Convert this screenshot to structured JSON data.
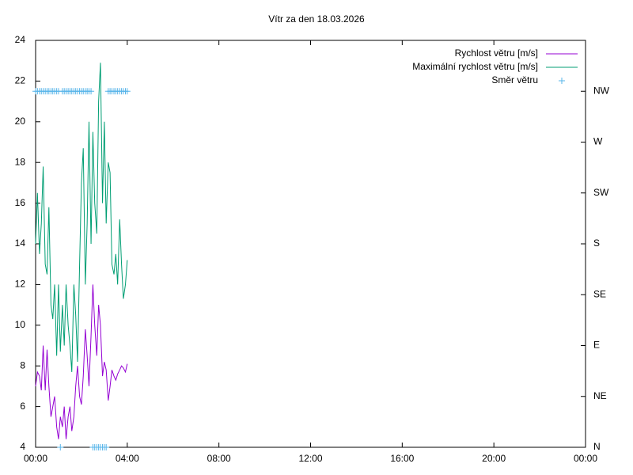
{
  "chart_data": {
    "type": "line",
    "title": "Vítr za den 18.03.2026",
    "x": [
      0,
      0.08,
      0.17,
      0.25,
      0.33,
      0.42,
      0.5,
      0.58,
      0.67,
      0.75,
      0.83,
      0.92,
      1,
      1.08,
      1.17,
      1.25,
      1.33,
      1.42,
      1.5,
      1.58,
      1.67,
      1.75,
      1.83,
      1.92,
      2,
      2.08,
      2.17,
      2.25,
      2.33,
      2.42,
      2.5,
      2.58,
      2.67,
      2.75,
      2.83,
      2.92,
      3,
      3.08,
      3.17,
      3.25,
      3.33,
      3.42,
      3.5,
      3.58,
      3.67,
      3.75,
      3.83,
      3.92,
      4
    ],
    "series": [
      {
        "name": "Rychlost větru [m/s]",
        "color": "#9400d3",
        "values": [
          7,
          7.7,
          7.5,
          6.8,
          9,
          6.8,
          8.8,
          7,
          5.5,
          6,
          6.5,
          5,
          4.4,
          5.5,
          5,
          6,
          4.4,
          5.5,
          6,
          4.8,
          5.5,
          7,
          8,
          6.5,
          6.1,
          7.5,
          9.8,
          8.5,
          7,
          9.5,
          12,
          10,
          8.5,
          11,
          10,
          7.5,
          8.2,
          7.8,
          6.3,
          7,
          7.8,
          7.5,
          7.3,
          7.6,
          7.8,
          8,
          7.9,
          7.7,
          8.1
        ]
      },
      {
        "name": "Maximální rychlost větru [m/s]",
        "color": "#009e73",
        "values": [
          14,
          16.5,
          13.5,
          15,
          17.8,
          13,
          12.5,
          15.8,
          11,
          10.3,
          12,
          8.5,
          12,
          8.7,
          11,
          9,
          12,
          10,
          9,
          7.7,
          12,
          10.5,
          8.2,
          13,
          17,
          18.7,
          12,
          15,
          20,
          14,
          19.5,
          16,
          14.5,
          21,
          22.9,
          16,
          20,
          15,
          18,
          17.5,
          13,
          12.5,
          13.5,
          12,
          15.2,
          13,
          11.3,
          12,
          13.2
        ]
      },
      {
        "name": "Směr větru",
        "color": "#56b4e9",
        "axis": "y2",
        "marker": "+",
        "values": [
          315,
          315,
          315,
          315,
          315,
          315,
          315,
          315,
          315,
          315,
          315,
          315,
          315,
          0,
          315,
          315,
          315,
          315,
          315,
          315,
          315,
          315,
          315,
          315,
          315,
          315,
          315,
          315,
          315,
          315,
          0,
          0,
          0,
          0,
          0,
          0,
          0,
          0,
          315,
          315,
          315,
          315,
          315,
          315,
          315,
          315,
          315,
          315,
          315
        ]
      }
    ],
    "xlim": [
      0,
      24
    ],
    "xticks": [
      {
        "value": 0,
        "label": "00:00"
      },
      {
        "value": 4,
        "label": "04:00"
      },
      {
        "value": 8,
        "label": "08:00"
      },
      {
        "value": 12,
        "label": "12:00"
      },
      {
        "value": 16,
        "label": "16:00"
      },
      {
        "value": 20,
        "label": "20:00"
      },
      {
        "value": 24,
        "label": "00:00"
      }
    ],
    "ylim": [
      4,
      24
    ],
    "yticks": [
      4,
      6,
      8,
      10,
      12,
      14,
      16,
      18,
      20,
      22,
      24
    ],
    "y2lim": [
      0,
      360
    ],
    "y2ticks": [
      {
        "value": 0,
        "label": "N"
      },
      {
        "value": 45,
        "label": "NE"
      },
      {
        "value": 90,
        "label": "E"
      },
      {
        "value": 135,
        "label": "SE"
      },
      {
        "value": 180,
        "label": "S"
      },
      {
        "value": 225,
        "label": "SW"
      },
      {
        "value": 270,
        "label": "W"
      },
      {
        "value": 315,
        "label": "NW"
      }
    ],
    "legend": "top right"
  }
}
